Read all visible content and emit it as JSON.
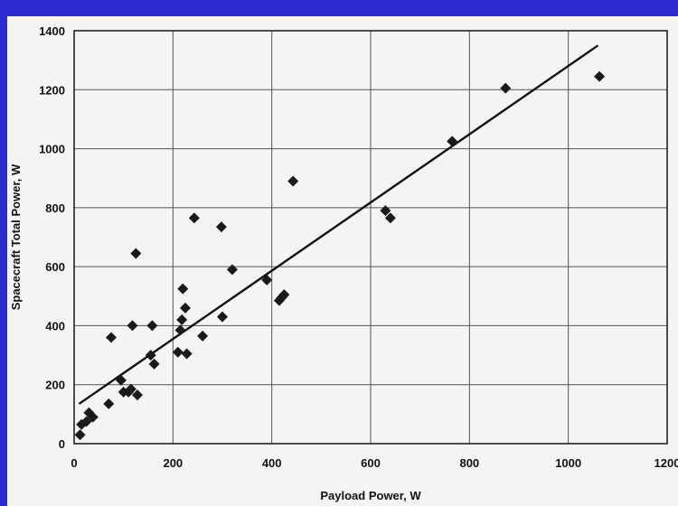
{
  "colors": {
    "background": "#2a2ad0",
    "paper": "#f4f4f2",
    "ink": "#1a1a1a"
  },
  "chart_data": {
    "type": "scatter",
    "title": "",
    "xlabel": "Payload Power, W",
    "ylabel": "Spacecraft Total Power, W",
    "xlim": [
      0,
      1200
    ],
    "ylim": [
      0,
      1400
    ],
    "xticks": [
      0,
      200,
      400,
      600,
      800,
      1000,
      1200
    ],
    "yticks": [
      0,
      200,
      400,
      600,
      800,
      1000,
      1200,
      1400
    ],
    "xtick_labels": [
      "0",
      "200",
      "400",
      "600",
      "800",
      "1000",
      "1200"
    ],
    "ytick_labels": [
      "0",
      "200",
      "400",
      "600",
      "800",
      "1000",
      "1200",
      "1400"
    ],
    "grid": true,
    "legend": "none",
    "series": [
      {
        "marker": "diamond",
        "points": [
          [
            12,
            30
          ],
          [
            15,
            65
          ],
          [
            25,
            75
          ],
          [
            30,
            105
          ],
          [
            38,
            90
          ],
          [
            70,
            135
          ],
          [
            75,
            360
          ],
          [
            95,
            215
          ],
          [
            100,
            175
          ],
          [
            110,
            175
          ],
          [
            115,
            185
          ],
          [
            118,
            400
          ],
          [
            125,
            645
          ],
          [
            128,
            165
          ],
          [
            155,
            300
          ],
          [
            158,
            400
          ],
          [
            162,
            270
          ],
          [
            210,
            310
          ],
          [
            215,
            385
          ],
          [
            218,
            420
          ],
          [
            220,
            525
          ],
          [
            225,
            460
          ],
          [
            228,
            305
          ],
          [
            243,
            765
          ],
          [
            260,
            365
          ],
          [
            298,
            735
          ],
          [
            300,
            430
          ],
          [
            320,
            590
          ],
          [
            390,
            555
          ],
          [
            415,
            485
          ],
          [
            420,
            495
          ],
          [
            425,
            505
          ],
          [
            443,
            890
          ],
          [
            630,
            790
          ],
          [
            640,
            765
          ],
          [
            765,
            1025
          ],
          [
            873,
            1205
          ],
          [
            1063,
            1245
          ]
        ]
      }
    ],
    "trendline": {
      "type": "linear",
      "x": [
        10,
        1060
      ],
      "y": [
        135,
        1350
      ]
    }
  }
}
